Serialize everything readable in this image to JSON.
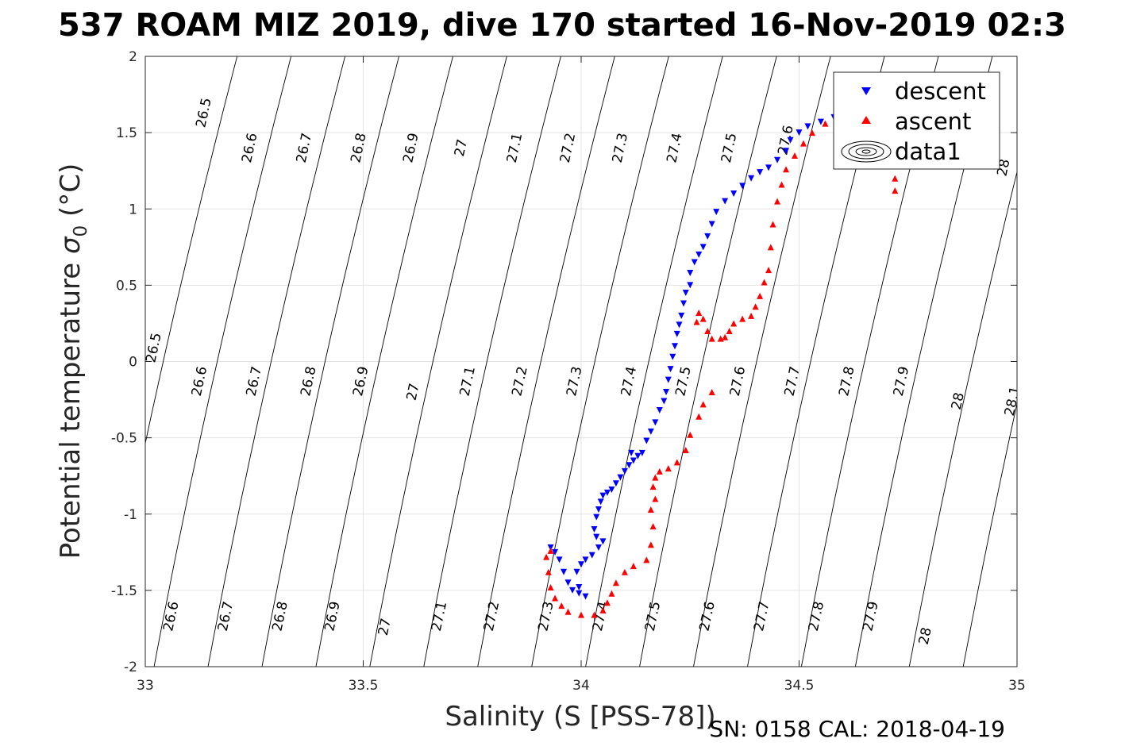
{
  "chart_data": {
    "type": "scatter",
    "title": "537 ROAM MIZ 2019, dive 170 started 16-Nov-2019 02:3",
    "xlabel": "Salinity (S [PSS-78])",
    "ylabel_main": "Potential temperature ",
    "ylabel_sigma": "σ",
    "ylabel_sub": "0",
    "ylabel_unit": " (°C)",
    "footer": "SN: 0158  CAL: 2018-04-19",
    "xlim": [
      33,
      35
    ],
    "ylim": [
      -2,
      2
    ],
    "grid": true,
    "legend_position": "top-right",
    "x_ticks": [
      {
        "value": 33,
        "label": "33"
      },
      {
        "value": 33.5,
        "label": "33.5"
      },
      {
        "value": 34,
        "label": "34"
      },
      {
        "value": 34.5,
        "label": "34.5"
      },
      {
        "value": 35,
        "label": "35"
      }
    ],
    "y_ticks": [
      {
        "value": 2,
        "label": "2"
      },
      {
        "value": 1.5,
        "label": "1.5"
      },
      {
        "value": 1,
        "label": "1"
      },
      {
        "value": 0.5,
        "label": "0.5"
      },
      {
        "value": 0,
        "label": "0"
      },
      {
        "value": -0.5,
        "label": "-0.5"
      },
      {
        "value": -1,
        "label": "-1"
      },
      {
        "value": -1.5,
        "label": "-1.5"
      },
      {
        "value": -2,
        "label": "-2"
      }
    ],
    "contours": {
      "levels": [
        26.5,
        26.6,
        26.7,
        26.8,
        26.9,
        27.0,
        27.1,
        27.2,
        27.3,
        27.4,
        27.5,
        27.6,
        27.7,
        27.8,
        27.9,
        28.0,
        28.1
      ],
      "labels": [
        {
          "text": "26.5",
          "x": 33.135,
          "y": 1.63
        },
        {
          "text": "26.6",
          "x": 33.24,
          "y": 1.4
        },
        {
          "text": "26.7",
          "x": 33.365,
          "y": 1.4
        },
        {
          "text": "26.8",
          "x": 33.49,
          "y": 1.4
        },
        {
          "text": "26.9",
          "x": 33.61,
          "y": 1.4
        },
        {
          "text": "27",
          "x": 33.725,
          "y": 1.4
        },
        {
          "text": "27.1",
          "x": 33.848,
          "y": 1.4
        },
        {
          "text": "27.2",
          "x": 33.97,
          "y": 1.4
        },
        {
          "text": "27.3",
          "x": 34.09,
          "y": 1.4
        },
        {
          "text": "27.4",
          "x": 34.215,
          "y": 1.4
        },
        {
          "text": "27.5",
          "x": 34.34,
          "y": 1.4
        },
        {
          "text": "27.6",
          "x": 34.47,
          "y": 1.45
        },
        {
          "text": "28",
          "x": 34.97,
          "y": 1.27
        },
        {
          "text": "26.5",
          "x": 33.02,
          "y": 0.09
        },
        {
          "text": "26.6",
          "x": 33.125,
          "y": -0.13
        },
        {
          "text": "26.7",
          "x": 33.25,
          "y": -0.13
        },
        {
          "text": "26.8",
          "x": 33.375,
          "y": -0.13
        },
        {
          "text": "26.9",
          "x": 33.495,
          "y": -0.13
        },
        {
          "text": "27",
          "x": 33.615,
          "y": -0.2
        },
        {
          "text": "27.1",
          "x": 33.74,
          "y": -0.13
        },
        {
          "text": "27.2",
          "x": 33.86,
          "y": -0.13
        },
        {
          "text": "27.3",
          "x": 33.985,
          "y": -0.13
        },
        {
          "text": "27.4",
          "x": 34.11,
          "y": -0.13
        },
        {
          "text": "27.5",
          "x": 34.235,
          "y": -0.13
        },
        {
          "text": "27.6",
          "x": 34.36,
          "y": -0.13
        },
        {
          "text": "27.7",
          "x": 34.485,
          "y": -0.13
        },
        {
          "text": "27.8",
          "x": 34.61,
          "y": -0.13
        },
        {
          "text": "27.9",
          "x": 34.735,
          "y": -0.13
        },
        {
          "text": "28",
          "x": 34.865,
          "y": -0.26
        },
        {
          "text": "28.1",
          "x": 34.99,
          "y": -0.26
        },
        {
          "text": "26.6",
          "x": 33.06,
          "y": -1.67
        },
        {
          "text": "26.7",
          "x": 33.185,
          "y": -1.67
        },
        {
          "text": "26.8",
          "x": 33.31,
          "y": -1.67
        },
        {
          "text": "26.9",
          "x": 33.43,
          "y": -1.67
        },
        {
          "text": "27",
          "x": 33.55,
          "y": -1.74
        },
        {
          "text": "27.1",
          "x": 33.675,
          "y": -1.67
        },
        {
          "text": "27.2",
          "x": 33.795,
          "y": -1.67
        },
        {
          "text": "27.3",
          "x": 33.92,
          "y": -1.67
        },
        {
          "text": "27.4",
          "x": 34.045,
          "y": -1.67
        },
        {
          "text": "27.5",
          "x": 34.165,
          "y": -1.67
        },
        {
          "text": "27.6",
          "x": 34.29,
          "y": -1.67
        },
        {
          "text": "27.7",
          "x": 34.415,
          "y": -1.67
        },
        {
          "text": "27.8",
          "x": 34.54,
          "y": -1.67
        },
        {
          "text": "27.9",
          "x": 34.665,
          "y": -1.67
        },
        {
          "text": "28",
          "x": 34.79,
          "y": -1.8
        }
      ]
    },
    "series": [
      {
        "name": "descent",
        "color": "#0000ff",
        "marker": "triangle-down",
        "points": [
          [
            34.67,
            1.63
          ],
          [
            34.62,
            1.62
          ],
          [
            34.58,
            1.6
          ],
          [
            34.55,
            1.57
          ],
          [
            34.52,
            1.54
          ],
          [
            34.5,
            1.5
          ],
          [
            34.48,
            1.45
          ],
          [
            34.47,
            1.38
          ],
          [
            34.45,
            1.32
          ],
          [
            34.43,
            1.27
          ],
          [
            34.41,
            1.24
          ],
          [
            34.39,
            1.2
          ],
          [
            34.37,
            1.15
          ],
          [
            34.35,
            1.1
          ],
          [
            34.33,
            1.05
          ],
          [
            34.31,
            0.98
          ],
          [
            34.3,
            0.9
          ],
          [
            34.29,
            0.82
          ],
          [
            34.28,
            0.75
          ],
          [
            34.27,
            0.7
          ],
          [
            34.26,
            0.65
          ],
          [
            34.25,
            0.58
          ],
          [
            34.25,
            0.5
          ],
          [
            34.24,
            0.45
          ],
          [
            34.235,
            0.38
          ],
          [
            34.23,
            0.3
          ],
          [
            34.225,
            0.24
          ],
          [
            34.22,
            0.18
          ],
          [
            34.215,
            0.1
          ],
          [
            34.21,
            0.03
          ],
          [
            34.205,
            -0.05
          ],
          [
            34.2,
            -0.12
          ],
          [
            34.195,
            -0.2
          ],
          [
            34.19,
            -0.26
          ],
          [
            34.18,
            -0.32
          ],
          [
            34.17,
            -0.4
          ],
          [
            34.16,
            -0.46
          ],
          [
            34.15,
            -0.52
          ],
          [
            34.14,
            -0.6
          ],
          [
            34.13,
            -0.62
          ],
          [
            34.12,
            -0.65
          ],
          [
            34.115,
            -0.6
          ],
          [
            34.11,
            -0.68
          ],
          [
            34.1,
            -0.72
          ],
          [
            34.09,
            -0.76
          ],
          [
            34.08,
            -0.8
          ],
          [
            34.07,
            -0.84
          ],
          [
            34.06,
            -0.86
          ],
          [
            34.05,
            -0.88
          ],
          [
            34.045,
            -0.92
          ],
          [
            34.04,
            -0.97
          ],
          [
            34.035,
            -1.02
          ],
          [
            34.03,
            -1.1
          ],
          [
            34.035,
            -1.15
          ],
          [
            34.05,
            -1.18
          ],
          [
            34.04,
            -1.22
          ],
          [
            34.025,
            -1.27
          ],
          [
            34.01,
            -1.3
          ],
          [
            34.0,
            -1.33
          ],
          [
            33.99,
            -1.38
          ],
          [
            33.995,
            -1.48
          ],
          [
            34.01,
            -1.54
          ],
          [
            33.995,
            -1.52
          ],
          [
            33.98,
            -1.5
          ],
          [
            33.97,
            -1.45
          ],
          [
            33.96,
            -1.38
          ],
          [
            33.95,
            -1.3
          ],
          [
            33.94,
            -1.25
          ],
          [
            33.93,
            -1.22
          ]
        ]
      },
      {
        "name": "ascent",
        "color": "#ff0000",
        "marker": "triangle-up",
        "points": [
          [
            34.72,
            1.12
          ],
          [
            34.72,
            1.2
          ],
          [
            34.72,
            1.3
          ],
          [
            34.72,
            1.42
          ],
          [
            34.71,
            1.52
          ],
          [
            34.7,
            1.58
          ],
          [
            34.66,
            1.62
          ],
          [
            34.63,
            1.64
          ],
          [
            34.6,
            1.61
          ],
          [
            34.56,
            1.56
          ],
          [
            34.53,
            1.5
          ],
          [
            34.51,
            1.43
          ],
          [
            34.49,
            1.35
          ],
          [
            34.47,
            1.26
          ],
          [
            34.46,
            1.16
          ],
          [
            34.45,
            1.05
          ],
          [
            34.44,
            0.9
          ],
          [
            34.435,
            0.75
          ],
          [
            34.43,
            0.6
          ],
          [
            34.42,
            0.52
          ],
          [
            34.41,
            0.43
          ],
          [
            34.4,
            0.36
          ],
          [
            34.39,
            0.3
          ],
          [
            34.37,
            0.28
          ],
          [
            34.35,
            0.25
          ],
          [
            34.34,
            0.2
          ],
          [
            34.33,
            0.16
          ],
          [
            34.32,
            0.15
          ],
          [
            34.3,
            0.15
          ],
          [
            34.29,
            0.2
          ],
          [
            34.28,
            0.28
          ],
          [
            34.27,
            0.32
          ],
          [
            34.265,
            0.26
          ],
          [
            34.3,
            -0.2
          ],
          [
            34.28,
            -0.28
          ],
          [
            34.27,
            -0.36
          ],
          [
            34.25,
            -0.48
          ],
          [
            34.24,
            -0.58
          ],
          [
            34.22,
            -0.66
          ],
          [
            34.2,
            -0.7
          ],
          [
            34.18,
            -0.72
          ],
          [
            34.17,
            -0.76
          ],
          [
            34.165,
            -0.82
          ],
          [
            34.17,
            -0.9
          ],
          [
            34.16,
            -0.97
          ],
          [
            34.165,
            -1.08
          ],
          [
            34.16,
            -1.2
          ],
          [
            34.15,
            -1.3
          ],
          [
            34.12,
            -1.34
          ],
          [
            34.1,
            -1.38
          ],
          [
            34.08,
            -1.45
          ],
          [
            34.07,
            -1.52
          ],
          [
            34.06,
            -1.58
          ],
          [
            34.05,
            -1.63
          ],
          [
            34.03,
            -1.66
          ],
          [
            34.0,
            -1.66
          ],
          [
            33.97,
            -1.64
          ],
          [
            33.955,
            -1.6
          ],
          [
            33.94,
            -1.55
          ],
          [
            33.93,
            -1.48
          ],
          [
            33.925,
            -1.38
          ],
          [
            33.92,
            -1.28
          ],
          [
            33.93,
            -1.24
          ]
        ]
      }
    ],
    "legend": [
      {
        "label": "descent",
        "marker": "triangle-down",
        "color": "#0000ff"
      },
      {
        "label": "ascent",
        "marker": "triangle-up",
        "color": "#ff0000"
      },
      {
        "label": "data1",
        "marker": "contour-icon",
        "color": "#000000"
      }
    ]
  }
}
